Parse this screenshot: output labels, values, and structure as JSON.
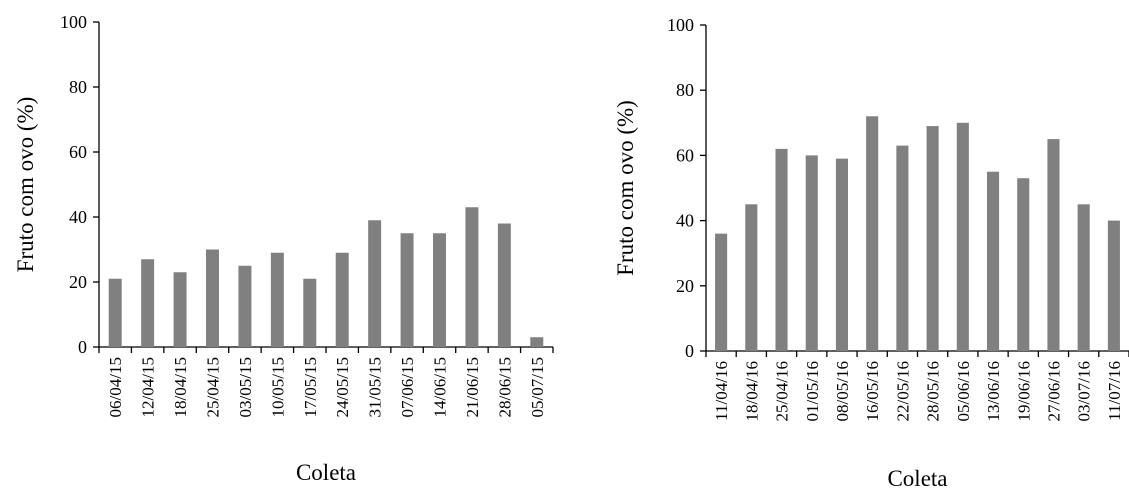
{
  "colors": {
    "bar": "#808080",
    "axis": "#000000",
    "background": "#ffffff"
  },
  "chart_data": [
    {
      "type": "bar",
      "title": "",
      "xlabel": "Coleta",
      "ylabel": "Fruto com ovo (%)",
      "ylim": [
        0,
        100
      ],
      "yticks": [
        "0",
        "20",
        "40",
        "60",
        "80",
        "100"
      ],
      "grid": false,
      "categories": [
        "06/04/15",
        "12/04/15",
        "18/04/15",
        "25/04/15",
        "03/05/15",
        "10/05/15",
        "17/05/15",
        "24/05/15",
        "31/05/15",
        "07/06/15",
        "14/06/15",
        "21/06/15",
        "28/06/15",
        "05/07/15"
      ],
      "values": [
        21,
        27,
        23,
        30,
        25,
        29,
        21,
        29,
        39,
        35,
        35,
        43,
        38,
        3
      ]
    },
    {
      "type": "bar",
      "title": "",
      "xlabel": "Coleta",
      "ylabel": "Fruto com ovo (%)",
      "ylim": [
        0,
        100
      ],
      "yticks": [
        "0",
        "20",
        "40",
        "60",
        "80",
        "100"
      ],
      "grid": false,
      "categories": [
        "11/04/16",
        "18/04/16",
        "25/04/16",
        "01/05/16",
        "08/05/16",
        "16/05/16",
        "22/05/16",
        "28/05/16",
        "05/06/16",
        "13/06/16",
        "19/06/16",
        "27/06/16",
        "03/07/16",
        "11/07/16"
      ],
      "values": [
        36,
        45,
        62,
        60,
        59,
        72,
        63,
        69,
        70,
        55,
        53,
        65,
        45,
        40
      ]
    }
  ]
}
